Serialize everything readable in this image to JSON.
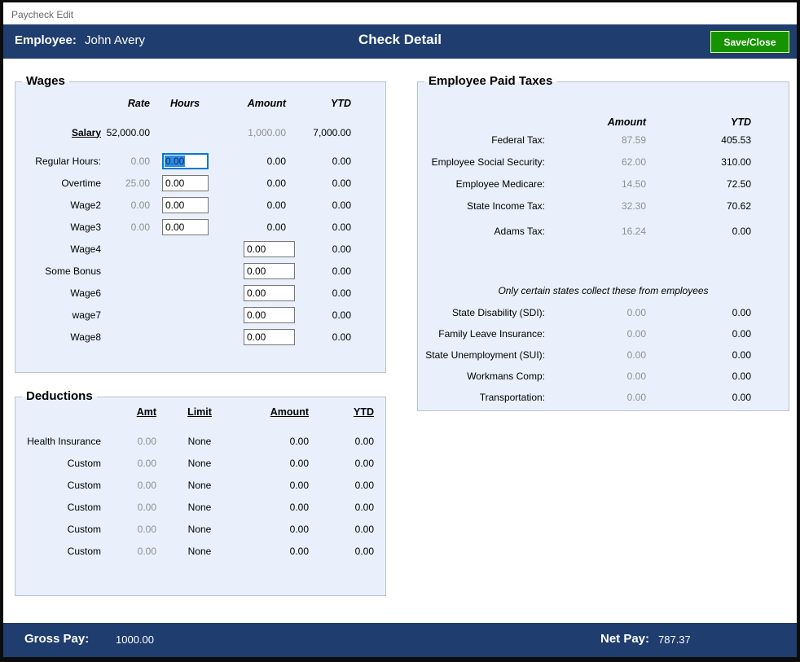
{
  "window": {
    "title": "Paycheck Edit"
  },
  "header": {
    "employee_label": "Employee:",
    "employee_name": "John Avery",
    "title": "Check Detail",
    "save_button_label": "Save/Close"
  },
  "colors": {
    "header_bar": "#1f3d6e",
    "save_button_green": "#169400",
    "panel_background": "#e9f0fb",
    "focus_border": "#0078d7",
    "selection_highlight": "#2f8be4",
    "muted_value_gray": "#8f8f8f"
  },
  "wages": {
    "section_title": "Wages",
    "col_rate": "Rate",
    "col_hours": "Hours",
    "col_amount": "Amount",
    "col_ytd": "YTD",
    "salary": {
      "label": "Salary",
      "rate": "52,000.00",
      "amount": "1,000.00",
      "ytd": "7,000.00"
    },
    "rows": [
      {
        "label": "Regular Hours:",
        "rate": "0.00",
        "hours": "0.00",
        "amount": "0.00",
        "ytd": "0.00"
      },
      {
        "label": "Overtime",
        "rate": "25.00",
        "hours": "0.00",
        "amount": "0.00",
        "ytd": "0.00"
      },
      {
        "label": "Wage2",
        "rate": "0.00",
        "hours": "0.00",
        "amount": "0.00",
        "ytd": "0.00"
      },
      {
        "label": "Wage3",
        "rate": "0.00",
        "hours": "0.00",
        "amount": "0.00",
        "ytd": "0.00"
      },
      {
        "label": "Wage4",
        "amount_input": "0.00",
        "ytd": "0.00"
      },
      {
        "label": "Some Bonus",
        "amount_input": "0.00",
        "ytd": "0.00"
      },
      {
        "label": "Wage6",
        "amount_input": "0.00",
        "ytd": "0.00"
      },
      {
        "label": "wage7",
        "amount_input": "0.00",
        "ytd": "0.00"
      },
      {
        "label": "Wage8",
        "amount_input": "0.00",
        "ytd": "0.00"
      }
    ]
  },
  "deductions": {
    "section_title": "Deductions",
    "col_amt": "Amt",
    "col_limit": "Limit",
    "col_amount": "Amount",
    "col_ytd": "YTD",
    "rows": [
      {
        "label": "Health Insurance",
        "amt": "0.00",
        "limit": "None",
        "amount": "0.00",
        "ytd": "0.00"
      },
      {
        "label": "Custom",
        "amt": "0.00",
        "limit": "None",
        "amount": "0.00",
        "ytd": "0.00"
      },
      {
        "label": "Custom",
        "amt": "0.00",
        "limit": "None",
        "amount": "0.00",
        "ytd": "0.00"
      },
      {
        "label": "Custom",
        "amt": "0.00",
        "limit": "None",
        "amount": "0.00",
        "ytd": "0.00"
      },
      {
        "label": "Custom",
        "amt": "0.00",
        "limit": "None",
        "amount": "0.00",
        "ytd": "0.00"
      },
      {
        "label": "Custom",
        "amt": "0.00",
        "limit": "None",
        "amount": "0.00",
        "ytd": "0.00"
      }
    ]
  },
  "taxes": {
    "section_title": "Employee Paid Taxes",
    "col_amount": "Amount",
    "col_ytd": "YTD",
    "rows": [
      {
        "label": "Federal Tax:",
        "amount": "87.59",
        "ytd": "405.53"
      },
      {
        "label": "Employee Social Security:",
        "amount": "62.00",
        "ytd": "310.00"
      },
      {
        "label": "Employee Medicare:",
        "amount": "14.50",
        "ytd": "72.50"
      },
      {
        "label": "State Income Tax:",
        "amount": "32.30",
        "ytd": "70.62"
      },
      {
        "label": "Adams Tax:",
        "amount": "16.24",
        "ytd": "0.00"
      }
    ],
    "note": "Only certain states collect these from employees",
    "state_rows": [
      {
        "label": "State Disability (SDI):",
        "amount": "0.00",
        "ytd": "0.00"
      },
      {
        "label": "Family Leave Insurance:",
        "amount": "0.00",
        "ytd": "0.00"
      },
      {
        "label": "State Unemployment (SUI):",
        "amount": "0.00",
        "ytd": "0.00"
      },
      {
        "label": "Workmans Comp:",
        "amount": "0.00",
        "ytd": "0.00"
      },
      {
        "label": "Transportation:",
        "amount": "0.00",
        "ytd": "0.00"
      }
    ]
  },
  "footer": {
    "gross_pay_label": "Gross Pay:",
    "gross_pay_value": "1000.00",
    "net_pay_label": "Net Pay:",
    "net_pay_value": "787.37"
  }
}
